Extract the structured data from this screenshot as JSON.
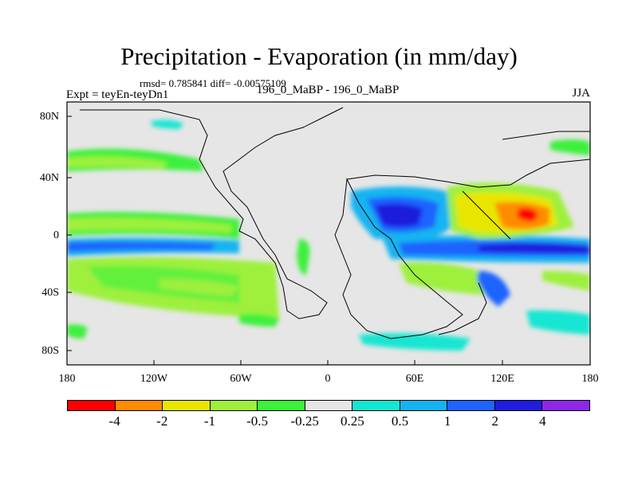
{
  "title": "Precipitation - Evaporation (in mm/day)",
  "stats": "rmsd= 0.785841 diff= -0.00575109",
  "experiment": "Expt = teyEn-teyDn1",
  "comparison": "196_0_MaBP - 196_0_MaBP",
  "season": "JJA",
  "y_ticks": [
    "80N",
    "40N",
    "0",
    "40S",
    "80S"
  ],
  "x_ticks": [
    "180",
    "120W",
    "60W",
    "0",
    "60E",
    "120E",
    "180"
  ],
  "colorbar": {
    "colors": [
      "#ff0000",
      "#ff8c00",
      "#e8e600",
      "#9ef03c",
      "#3cf03c",
      "#e6e6e6",
      "#14e6d2",
      "#14b4f0",
      "#1e64ff",
      "#1e1edc",
      "#8c28e6"
    ],
    "labels": [
      "-4",
      "-2",
      "-1",
      "-0.5",
      "-0.25",
      "0.25",
      "0.5",
      "1",
      "2",
      "4"
    ]
  }
}
